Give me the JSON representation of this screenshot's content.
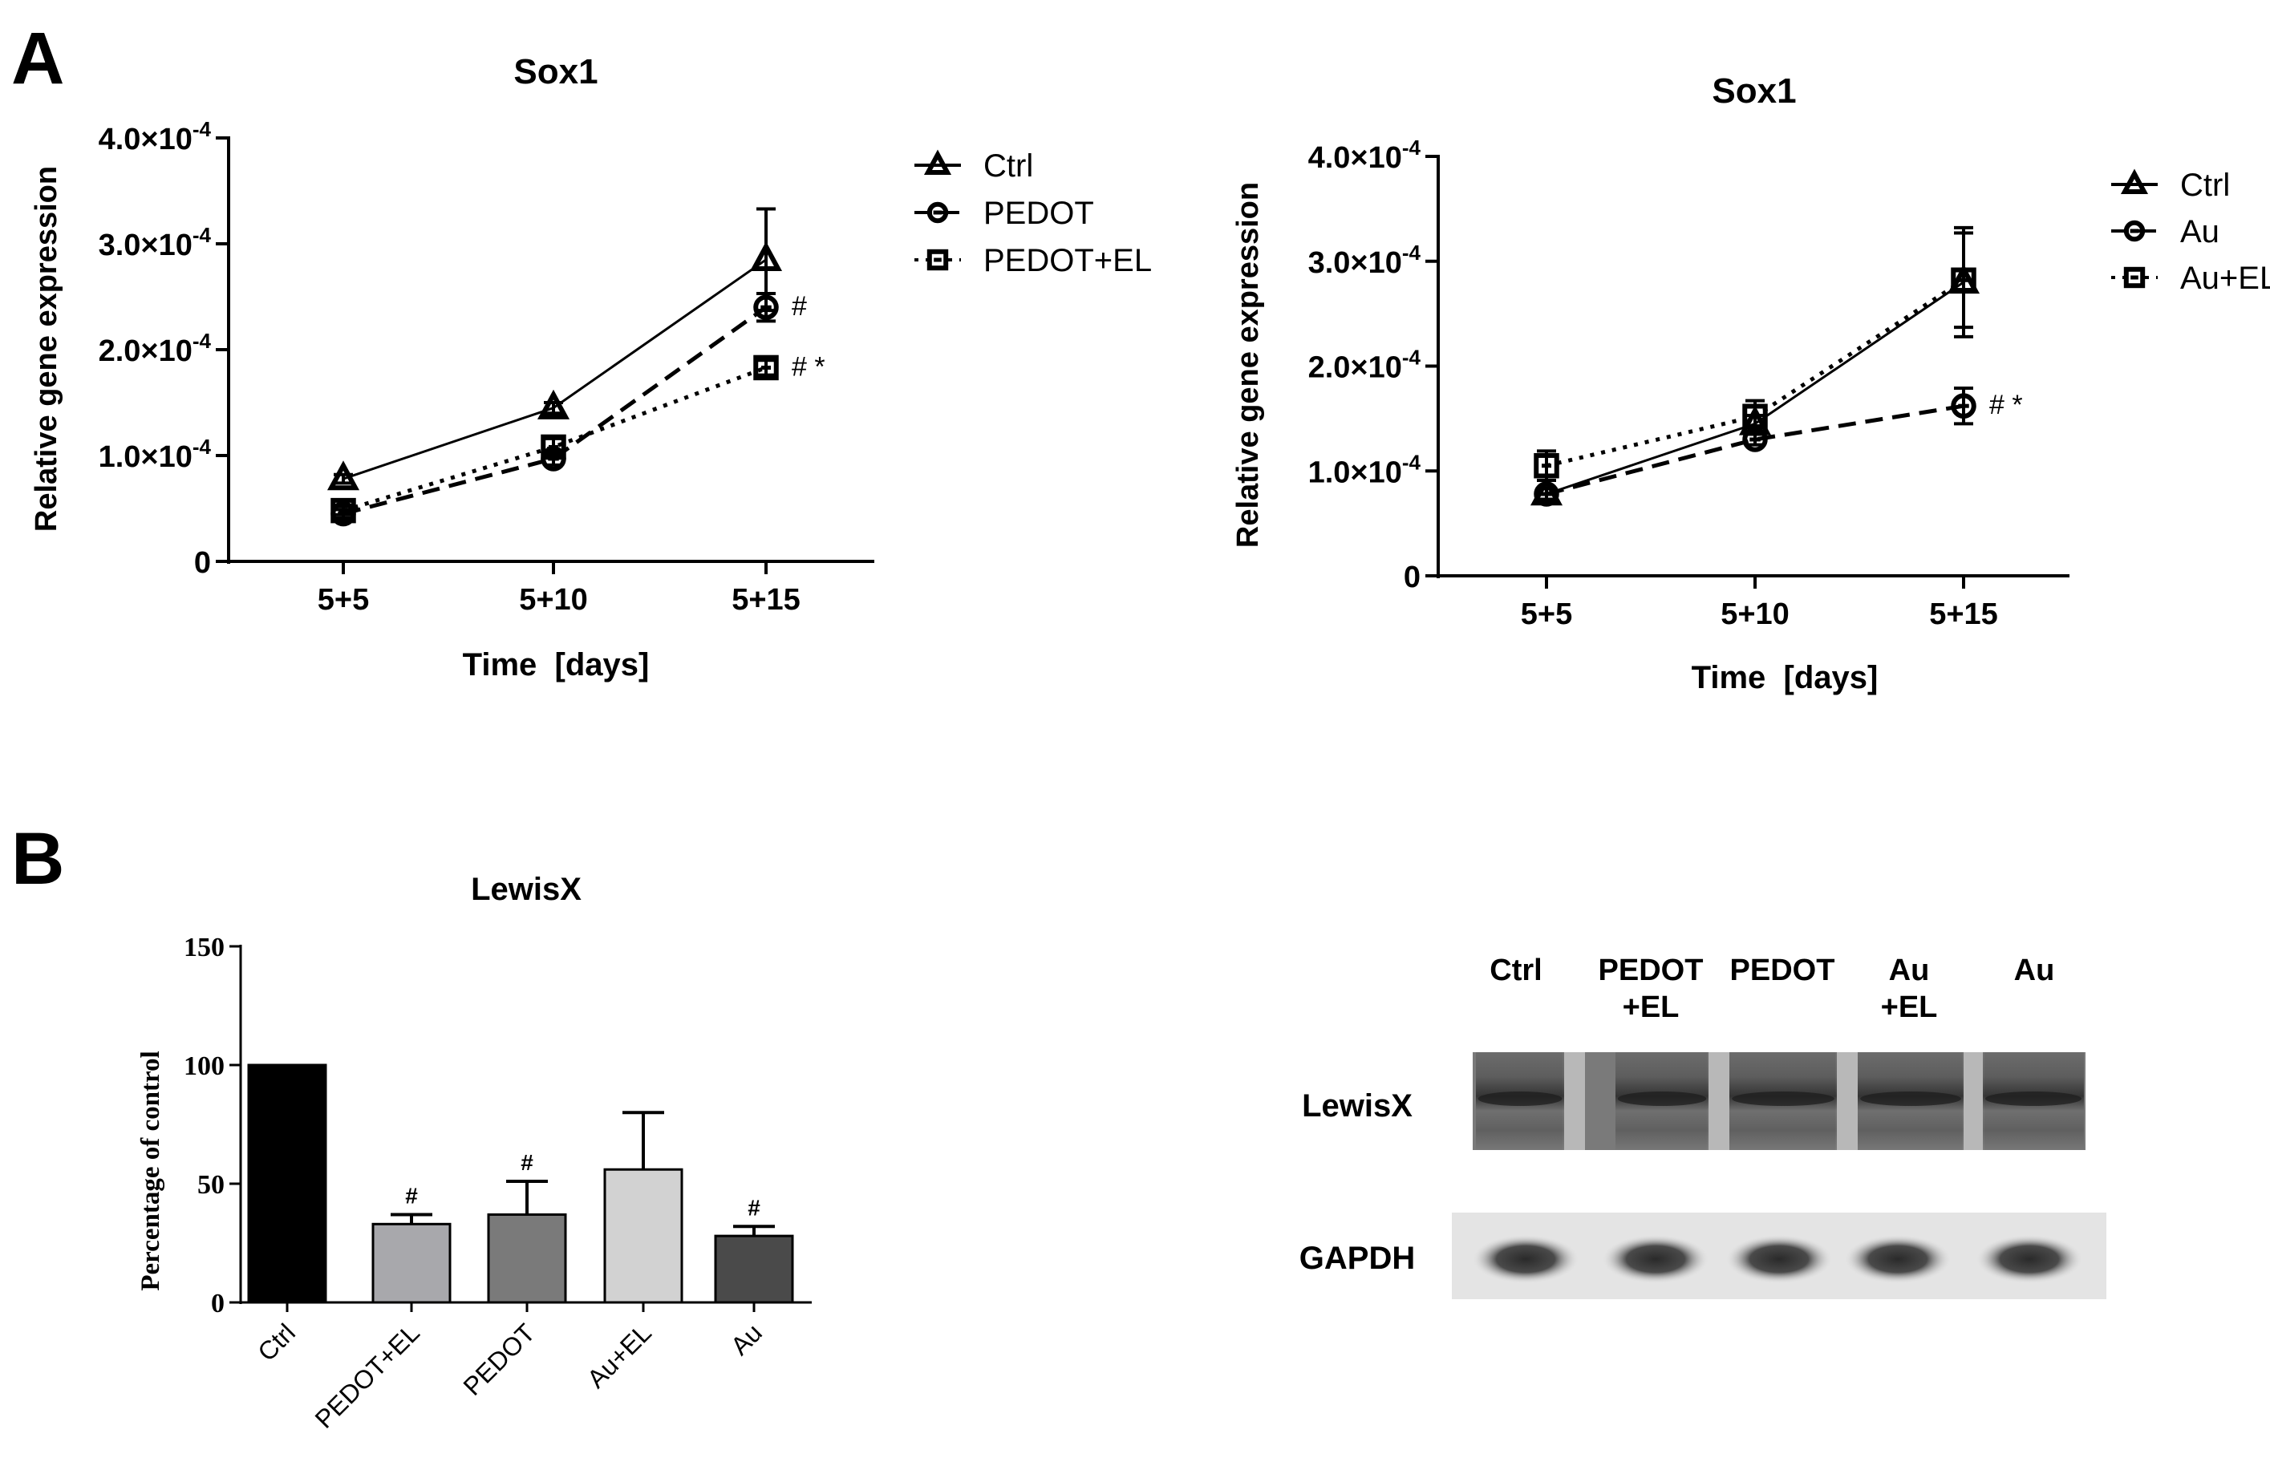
{
  "panel_labels": {
    "a": "A",
    "b": "B"
  },
  "chart_data": [
    {
      "id": "sox1_pedot",
      "type": "line",
      "title": "Sox1",
      "xlabel": "Time  [days]",
      "ylabel": "Relative gene expression",
      "categories": [
        "5+5",
        "5+10",
        "5+15"
      ],
      "ylim": [
        0,
        0.0004
      ],
      "yticks": [
        {
          "value": 0,
          "label": "0"
        },
        {
          "value": 0.0001,
          "label": "1.0×10",
          "exp": "-4"
        },
        {
          "value": 0.0002,
          "label": "2.0×10",
          "exp": "-4"
        },
        {
          "value": 0.0003,
          "label": "3.0×10",
          "exp": "-4"
        },
        {
          "value": 0.0004,
          "label": "4.0×10",
          "exp": "-4"
        }
      ],
      "series": [
        {
          "name": "Ctrl",
          "marker": "triangle",
          "dash": "solid",
          "values": [
            7.8e-05,
            0.000145,
            0.000285
          ],
          "errors": [
            4e-06,
            5e-06,
            4.8e-05
          ],
          "annotations": [
            "",
            "",
            ""
          ]
        },
        {
          "name": "PEDOT",
          "marker": "circle",
          "dash": "dashed",
          "values": [
            4.5e-05,
            9.7e-05,
            0.00024
          ],
          "errors": [
            4e-06,
            6e-06,
            1.3e-05
          ],
          "annotations": [
            "",
            "",
            "#"
          ]
        },
        {
          "name": "PEDOT+EL",
          "marker": "square",
          "dash": "dotted",
          "values": [
            4.8e-05,
            0.000108,
            0.000183
          ],
          "errors": [
            4e-06,
            8e-06,
            7e-06
          ],
          "annotations": [
            "",
            "",
            "# *"
          ]
        }
      ],
      "grid": false,
      "legend": "right"
    },
    {
      "id": "sox1_au",
      "type": "line",
      "title": "Sox1",
      "xlabel": "Time  [days]",
      "ylabel": "Relative gene expression",
      "categories": [
        "5+5",
        "5+10",
        "5+15"
      ],
      "ylim": [
        0,
        0.0004
      ],
      "yticks": [
        {
          "value": 0,
          "label": "0"
        },
        {
          "value": 0.0001,
          "label": "1.0×10",
          "exp": "-4"
        },
        {
          "value": 0.0002,
          "label": "2.0×10",
          "exp": "-4"
        },
        {
          "value": 0.0003,
          "label": "3.0×10",
          "exp": "-4"
        },
        {
          "value": 0.0004,
          "label": "4.0×10",
          "exp": "-4"
        }
      ],
      "series": [
        {
          "name": "Ctrl",
          "marker": "triangle",
          "dash": "solid",
          "values": [
            7.8e-05,
            0.000145,
            0.00028
          ],
          "errors": [
            6e-06,
            8e-06,
            5.2e-05
          ],
          "annotations": [
            "",
            "",
            ""
          ]
        },
        {
          "name": "Au",
          "marker": "circle",
          "dash": "dashed",
          "values": [
            7.8e-05,
            0.00013,
            0.000162
          ],
          "errors": [
            5e-06,
            5e-06,
            1.7e-05
          ],
          "annotations": [
            "",
            "",
            "# *"
          ]
        },
        {
          "name": "Au+EL",
          "marker": "square",
          "dash": "dotted",
          "values": [
            0.000105,
            0.000152,
            0.000282
          ],
          "errors": [
            1.4e-05,
            1.5e-05,
            4.5e-05
          ],
          "annotations": [
            "",
            "",
            ""
          ]
        }
      ],
      "grid": false,
      "legend": "right"
    },
    {
      "id": "lewisx_bar",
      "type": "bar",
      "title": "LewisX",
      "xlabel": "",
      "ylabel": "Percentage of control",
      "categories": [
        "Ctrl",
        "PEDOT+EL",
        "PEDOT",
        "Au+EL",
        "Au"
      ],
      "values": [
        100,
        33,
        37,
        56,
        28
      ],
      "errors": [
        0,
        4,
        14,
        24,
        4
      ],
      "annotations": [
        "",
        "#",
        "#",
        "",
        "#"
      ],
      "colors": [
        "#000000",
        "#a8a8ac",
        "#7a7a7a",
        "#d2d2d2",
        "#4a4a4a"
      ],
      "ylim": [
        0,
        150
      ],
      "yticks": [
        {
          "value": 0,
          "label": "0"
        },
        {
          "value": 50,
          "label": "50"
        },
        {
          "value": 100,
          "label": "100"
        },
        {
          "value": 150,
          "label": "150"
        }
      ],
      "grid": false
    }
  ],
  "blot": {
    "lane_labels": [
      {
        "line1": "Ctrl",
        "line2": ""
      },
      {
        "line1": "PEDOT",
        "line2": "+EL"
      },
      {
        "line1": "PEDOT",
        "line2": ""
      },
      {
        "line1": "Au",
        "line2": "+EL"
      },
      {
        "line1": "Au",
        "line2": ""
      }
    ],
    "rows": [
      {
        "label": "LewisX"
      },
      {
        "label": "GAPDH"
      }
    ]
  }
}
